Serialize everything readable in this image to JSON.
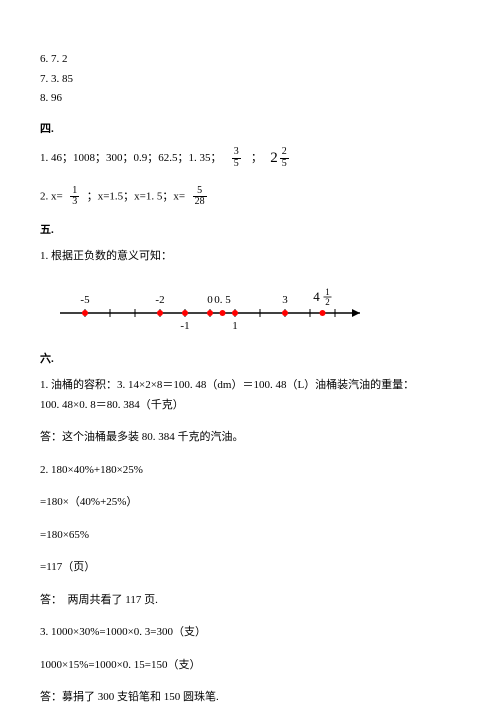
{
  "top": {
    "l1": "6. 7. 2",
    "l2": "7. 3. 85",
    "l3": "8. 96"
  },
  "s4": {
    "title": "四.",
    "r1a": "1. 46；1008；300；0.9；62.5；1. 35；",
    "r1f1n": "3",
    "r1f1d": "5",
    "r1sep": "；",
    "r1mw": "2",
    "r1mn": "2",
    "r1md": "5",
    "r2a": "2. x=",
    "r2f1n": "1",
    "r2f1d": "3",
    "r2b": "；x=1.5；x=1. 5；x=",
    "r2f2n": "5",
    "r2f2d": "28"
  },
  "s5": {
    "title": "五.",
    "l1": "1. 根据正负数的意义可知："
  },
  "nl": {
    "labels": {
      "m5": "-5",
      "m2": "-2",
      "m1": "-1",
      "z": "0",
      "p05": "0. 5",
      "p1": "1",
      "p3": "3",
      "mixw": "4",
      "mixn": "1",
      "mixd": "2"
    },
    "color_point": "#ff0000",
    "color_line": "#000000",
    "xmin": -6,
    "xmax": 6
  },
  "s6": {
    "title": "六.",
    "p1a": "1. 油桶的容积：3. 14×2×8＝100. 48（dm）＝100. 48（L）油桶装汽油的重量：",
    "p1b": "100. 48×0. 8＝80. 384（千克）",
    "p1c": "答：这个油桶最多装 80. 384 千克的汽油。",
    "p2a": "2. 180×40%+180×25%",
    "p2b": "=180×（40%+25%）",
    "p2c": "=180×65%",
    "p2d": "=117（页）",
    "p2e": "答：　两周共看了 117 页.",
    "p3a": "3. 1000×30%=1000×0. 3=300（支）",
    "p3b": "1000×15%=1000×0. 15=150（支）",
    "p3c": "答：募捐了 300 支铅笔和 150 圆珠笔."
  }
}
